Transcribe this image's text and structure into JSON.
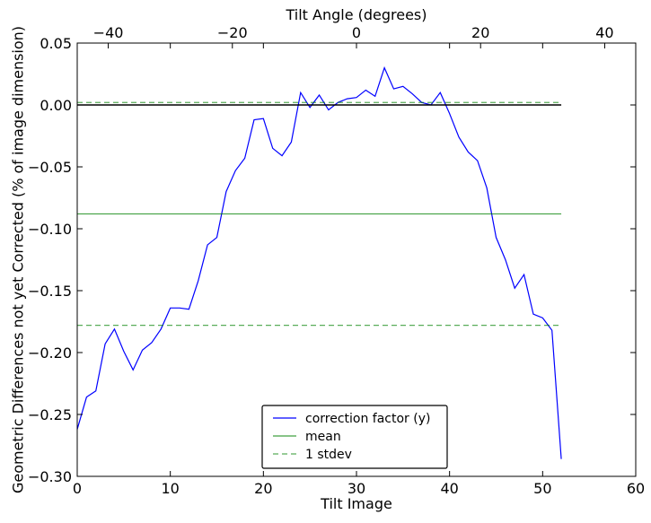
{
  "chart_data": {
    "type": "line",
    "title": "",
    "xlabel": "Tilt Image",
    "ylabel": "Geometric Differences not yet Corrected (% of image dimension)",
    "x2label": "Tilt Angle (degrees)",
    "xlim": [
      0,
      60
    ],
    "ylim": [
      -0.3,
      0.05
    ],
    "x2lim": [
      -45,
      45
    ],
    "xticks": [
      0,
      10,
      20,
      30,
      40,
      50,
      60
    ],
    "yticks": [
      -0.3,
      -0.25,
      -0.2,
      -0.15,
      -0.1,
      -0.05,
      0.0,
      0.05
    ],
    "ytick_labels": [
      "−0.30",
      "−0.25",
      "−0.20",
      "−0.15",
      "−0.10",
      "−0.05",
      "0.00",
      "0.05"
    ],
    "x2ticks": [
      -40,
      -20,
      0,
      20,
      40
    ],
    "x2tick_labels": [
      "−40",
      "−20",
      "0",
      "20",
      "40"
    ],
    "grid": false,
    "legend_position": "lower-center",
    "series": [
      {
        "name": "correction factor (y)",
        "color": "#0000ff",
        "style": "solid",
        "x": [
          0,
          1,
          2,
          3,
          4,
          5,
          6,
          7,
          8,
          9,
          10,
          11,
          12,
          13,
          14,
          15,
          16,
          17,
          18,
          19,
          20,
          21,
          22,
          23,
          24,
          25,
          26,
          27,
          28,
          29,
          30,
          31,
          32,
          33,
          34,
          35,
          36,
          37,
          38,
          39,
          40,
          41,
          42,
          43,
          44,
          45,
          46,
          47,
          48,
          49,
          50,
          51,
          52
        ],
        "values": [
          -0.262,
          -0.236,
          -0.231,
          -0.193,
          -0.181,
          -0.199,
          -0.214,
          -0.198,
          -0.192,
          -0.181,
          -0.164,
          -0.164,
          -0.165,
          -0.142,
          -0.113,
          -0.107,
          -0.07,
          -0.053,
          -0.043,
          -0.012,
          -0.011,
          -0.035,
          -0.041,
          -0.03,
          0.01,
          -0.002,
          0.008,
          -0.004,
          0.002,
          0.005,
          0.006,
          0.012,
          0.007,
          0.03,
          0.013,
          0.015,
          0.009,
          0.002,
          0.0,
          0.01,
          -0.007,
          -0.026,
          -0.038,
          -0.045,
          -0.067,
          -0.107,
          -0.125,
          -0.148,
          -0.137,
          -0.169,
          -0.172,
          -0.182,
          -0.286
        ]
      },
      {
        "name": "mean",
        "color": "#008000",
        "style": "solid",
        "x": [
          0,
          52
        ],
        "values": [
          -0.088,
          -0.088
        ]
      },
      {
        "name": "1 stdev",
        "color": "#008000",
        "style": "dashed",
        "x": [
          0,
          52
        ],
        "values": [
          0.002,
          0.002
        ]
      },
      {
        "name": "",
        "color": "#008000",
        "style": "dashed",
        "x": [
          0,
          52
        ],
        "values": [
          -0.178,
          -0.178
        ]
      },
      {
        "name": "",
        "color": "#000000",
        "style": "solid",
        "x": [
          0,
          52
        ],
        "values": [
          0.0,
          0.0
        ]
      }
    ],
    "legend": [
      {
        "label": "correction factor (y)",
        "series": 0
      },
      {
        "label": "mean",
        "series": 1
      },
      {
        "label": "1 stdev",
        "series": 2
      }
    ]
  }
}
